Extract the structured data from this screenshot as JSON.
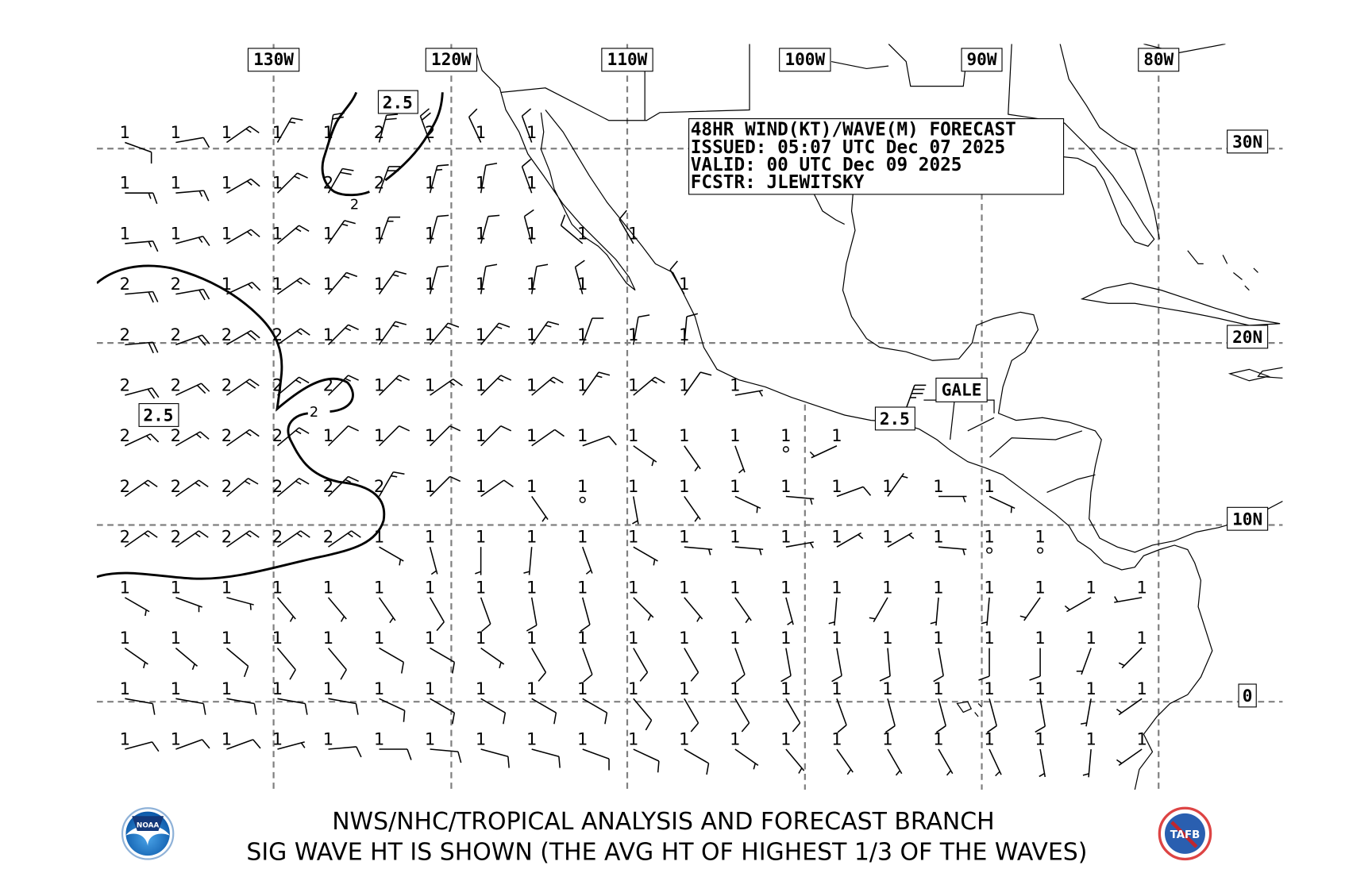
{
  "title_box": {
    "line1": "48HR WIND(KT)/WAVE(M) FORECAST",
    "line2": "ISSUED: 05:07 UTC Dec 07 2025",
    "line3": "VALID: 00 UTC Dec 09 2025",
    "line4": "FCSTR: JLEWITSKY"
  },
  "longitude_labels": [
    "130W",
    "120W",
    "110W",
    "100W",
    "90W",
    "80W"
  ],
  "latitude_labels": [
    "30N",
    "20N",
    "10N",
    "0"
  ],
  "contour_labels": {
    "north_2_5": "2.5",
    "west_2_5": "2.5",
    "tehuantepec_2_5": "2.5",
    "north_2": "2",
    "west_2": "2"
  },
  "warning_label": "GALE",
  "gale_wind": {
    "dir": 20,
    "spd": 35
  },
  "footer": {
    "line1": "NWS/NHC/TROPICAL ANALYSIS AND FORECAST BRANCH",
    "line2": "SIG WAVE HT IS SHOWN (THE AVG HT OF HIGHEST 1/3 OF THE WAVES)"
  },
  "logos": {
    "left": "NOAA",
    "right": "TAFB"
  },
  "colors": {
    "grid": "#808080",
    "ink": "#000000",
    "noaa_blue": "#1a5fb4",
    "tafb_red": "#c0262d"
  },
  "station_grid_legend": "cell = [wave height m, wind direction from deg, wind speed kt]",
  "stations": [
    [
      [
        1,
        110,
        10
      ],
      [
        1,
        80,
        10
      ],
      [
        1,
        55,
        15
      ],
      [
        1,
        30,
        15
      ],
      [
        1,
        10,
        20
      ],
      [
        2,
        15,
        20
      ],
      [
        2,
        340,
        20
      ],
      [
        1,
        335,
        10
      ],
      [
        1,
        340,
        10
      ],
      null,
      null,
      null,
      null,
      null,
      null,
      null,
      null,
      null,
      null,
      null,
      null
    ],
    [
      [
        1,
        90,
        15
      ],
      [
        1,
        85,
        15
      ],
      [
        1,
        60,
        15
      ],
      [
        1,
        45,
        15
      ],
      [
        2,
        30,
        20
      ],
      [
        2,
        20,
        20
      ],
      [
        1,
        15,
        15
      ],
      [
        1,
        10,
        10
      ],
      [
        1,
        340,
        10
      ],
      null,
      null,
      null,
      null,
      null,
      null,
      null,
      null,
      null,
      null,
      null,
      null
    ],
    [
      [
        1,
        85,
        15
      ],
      [
        1,
        75,
        15
      ],
      [
        1,
        60,
        15
      ],
      [
        1,
        50,
        15
      ],
      [
        1,
        35,
        15
      ],
      [
        1,
        20,
        15
      ],
      [
        1,
        15,
        10
      ],
      [
        1,
        15,
        10
      ],
      [
        1,
        345,
        10
      ],
      [
        1,
        310,
        10
      ],
      [
        1,
        330,
        10
      ],
      null,
      null,
      null,
      null,
      null,
      null,
      null,
      null,
      null,
      null
    ],
    [
      [
        2,
        85,
        20
      ],
      [
        2,
        80,
        20
      ],
      [
        1,
        65,
        15
      ],
      [
        1,
        55,
        15
      ],
      [
        1,
        40,
        15
      ],
      [
        1,
        35,
        15
      ],
      [
        1,
        15,
        10
      ],
      [
        1,
        10,
        10
      ],
      [
        1,
        10,
        10
      ],
      [
        1,
        345,
        10
      ],
      null,
      [
        1,
        330,
        10
      ],
      null,
      null,
      null,
      null,
      null,
      null,
      null,
      null,
      null
    ],
    [
      [
        2,
        85,
        20
      ],
      [
        2,
        70,
        20
      ],
      [
        2,
        60,
        20
      ],
      [
        2,
        55,
        15
      ],
      [
        1,
        45,
        15
      ],
      [
        1,
        35,
        15
      ],
      [
        1,
        40,
        15
      ],
      [
        1,
        40,
        15
      ],
      [
        1,
        35,
        15
      ],
      [
        1,
        20,
        10
      ],
      [
        1,
        10,
        10
      ],
      [
        1,
        5,
        10
      ],
      null,
      null,
      null,
      null,
      null,
      null,
      null,
      null,
      null
    ],
    [
      [
        2,
        75,
        20
      ],
      [
        2,
        65,
        20
      ],
      [
        2,
        55,
        20
      ],
      [
        2,
        50,
        15
      ],
      [
        2,
        45,
        15
      ],
      [
        1,
        45,
        15
      ],
      [
        1,
        55,
        15
      ],
      [
        1,
        45,
        15
      ],
      [
        1,
        50,
        15
      ],
      [
        1,
        35,
        15
      ],
      [
        1,
        50,
        15
      ],
      [
        1,
        35,
        10
      ],
      [
        1,
        80,
        5
      ],
      null,
      null,
      null,
      null,
      null,
      null,
      null,
      null
    ],
    [
      [
        2,
        65,
        15
      ],
      [
        2,
        60,
        15
      ],
      [
        2,
        55,
        15
      ],
      [
        2,
        50,
        15
      ],
      [
        1,
        45,
        10
      ],
      [
        1,
        45,
        10
      ],
      [
        1,
        45,
        10
      ],
      [
        1,
        45,
        10
      ],
      [
        1,
        55,
        10
      ],
      [
        1,
        70,
        10
      ],
      [
        1,
        125,
        5
      ],
      [
        1,
        145,
        5
      ],
      [
        1,
        160,
        5
      ],
      [
        1,
        null,
        0
      ],
      [
        1,
        245,
        5
      ],
      null,
      null,
      null,
      null,
      null,
      null
    ],
    [
      [
        2,
        55,
        15
      ],
      [
        2,
        55,
        15
      ],
      [
        2,
        50,
        15
      ],
      [
        2,
        50,
        15
      ],
      [
        2,
        45,
        15
      ],
      [
        2,
        30,
        15
      ],
      [
        1,
        45,
        10
      ],
      [
        1,
        55,
        10
      ],
      [
        1,
        145,
        5
      ],
      [
        1,
        null,
        0
      ],
      [
        1,
        170,
        5
      ],
      [
        1,
        145,
        5
      ],
      [
        1,
        115,
        5
      ],
      [
        1,
        95,
        5
      ],
      [
        1,
        70,
        10
      ],
      [
        1,
        35,
        5
      ],
      [
        1,
        90,
        5
      ],
      [
        1,
        115,
        5
      ],
      null,
      null,
      null
    ],
    [
      [
        2,
        55,
        15
      ],
      [
        2,
        55,
        15
      ],
      [
        2,
        55,
        15
      ],
      [
        2,
        55,
        15
      ],
      [
        2,
        55,
        15
      ],
      [
        1,
        120,
        5
      ],
      [
        1,
        165,
        5
      ],
      [
        1,
        180,
        5
      ],
      [
        1,
        185,
        5
      ],
      [
        1,
        160,
        5
      ],
      [
        1,
        120,
        5
      ],
      [
        1,
        95,
        5
      ],
      [
        1,
        95,
        5
      ],
      [
        1,
        80,
        5
      ],
      [
        1,
        60,
        5
      ],
      [
        1,
        60,
        5
      ],
      [
        1,
        95,
        5
      ],
      [
        1,
        null,
        0
      ],
      [
        1,
        null,
        0
      ],
      null,
      null
    ],
    [
      [
        1,
        120,
        5
      ],
      [
        1,
        110,
        5
      ],
      [
        1,
        105,
        5
      ],
      [
        1,
        140,
        5
      ],
      [
        1,
        140,
        5
      ],
      [
        1,
        145,
        5
      ],
      [
        1,
        150,
        10
      ],
      [
        1,
        160,
        10
      ],
      [
        1,
        170,
        10
      ],
      [
        1,
        165,
        10
      ],
      [
        1,
        135,
        5
      ],
      [
        1,
        140,
        5
      ],
      [
        1,
        145,
        5
      ],
      [
        1,
        165,
        5
      ],
      [
        1,
        185,
        5
      ],
      [
        1,
        210,
        5
      ],
      [
        1,
        185,
        5
      ],
      [
        1,
        185,
        5
      ],
      [
        1,
        215,
        5
      ],
      [
        1,
        240,
        5
      ],
      [
        1,
        260,
        5
      ]
    ],
    [
      [
        1,
        125,
        5
      ],
      [
        1,
        130,
        5
      ],
      [
        1,
        130,
        10
      ],
      [
        1,
        140,
        10
      ],
      [
        1,
        140,
        10
      ],
      [
        1,
        120,
        10
      ],
      [
        1,
        120,
        10
      ],
      [
        1,
        125,
        5
      ],
      [
        1,
        150,
        10
      ],
      [
        1,
        160,
        10
      ],
      [
        1,
        150,
        10
      ],
      [
        1,
        150,
        10
      ],
      [
        1,
        160,
        10
      ],
      [
        1,
        170,
        10
      ],
      [
        1,
        170,
        10
      ],
      [
        1,
        175,
        10
      ],
      [
        1,
        170,
        10
      ],
      [
        1,
        180,
        10
      ],
      [
        1,
        180,
        10
      ],
      [
        1,
        200,
        5
      ],
      [
        1,
        225,
        5
      ]
    ],
    [
      [
        1,
        100,
        10
      ],
      [
        1,
        100,
        10
      ],
      [
        1,
        100,
        10
      ],
      [
        1,
        100,
        10
      ],
      [
        1,
        100,
        10
      ],
      [
        1,
        115,
        10
      ],
      [
        1,
        120,
        10
      ],
      [
        1,
        120,
        10
      ],
      [
        1,
        120,
        10
      ],
      [
        1,
        120,
        10
      ],
      [
        1,
        140,
        10
      ],
      [
        1,
        150,
        10
      ],
      [
        1,
        150,
        10
      ],
      [
        1,
        150,
        10
      ],
      [
        1,
        160,
        10
      ],
      [
        1,
        165,
        10
      ],
      [
        1,
        165,
        10
      ],
      [
        1,
        165,
        10
      ],
      [
        1,
        170,
        10
      ],
      [
        1,
        190,
        5
      ],
      [
        1,
        235,
        5
      ]
    ],
    [
      [
        1,
        75,
        10
      ],
      [
        1,
        70,
        10
      ],
      [
        1,
        70,
        10
      ],
      [
        1,
        75,
        5
      ],
      [
        1,
        85,
        10
      ],
      [
        1,
        90,
        10
      ],
      [
        1,
        95,
        10
      ],
      [
        1,
        105,
        10
      ],
      [
        1,
        105,
        10
      ],
      [
        1,
        110,
        10
      ],
      [
        1,
        115,
        10
      ],
      [
        1,
        120,
        10
      ],
      [
        1,
        125,
        5
      ],
      [
        1,
        140,
        5
      ],
      [
        1,
        145,
        5
      ],
      [
        1,
        150,
        5
      ],
      [
        1,
        150,
        5
      ],
      [
        1,
        155,
        5
      ],
      [
        1,
        170,
        5
      ],
      [
        1,
        185,
        5
      ],
      [
        1,
        235,
        5
      ]
    ]
  ]
}
